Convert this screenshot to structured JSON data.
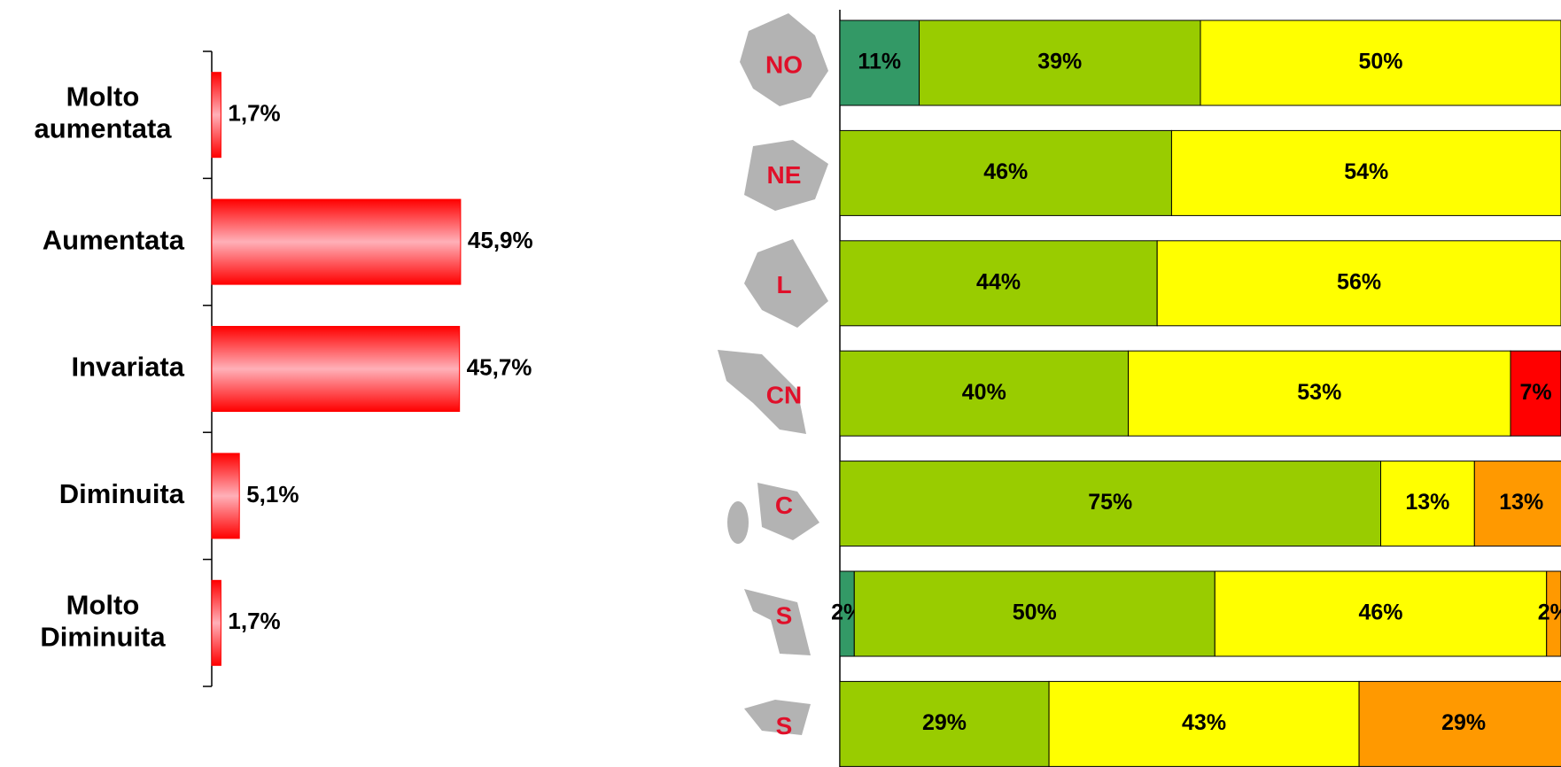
{
  "chart_data": [
    {
      "type": "barh",
      "categories": [
        "Molto aumentata",
        "Aumentata",
        "Invariata",
        "Diminuita",
        "Molto Diminuita"
      ],
      "values": [
        1.7,
        45.9,
        45.7,
        5.1,
        1.7
      ],
      "value_labels": [
        "1,7%",
        "45,9%",
        "45,7%",
        "5,1%",
        "1,7%"
      ],
      "color": "#ff0000",
      "xlim": [
        0,
        50
      ]
    },
    {
      "type": "stacked_barh",
      "categories": [
        "NO",
        "NE",
        "L",
        "CN",
        "C",
        "S",
        "S"
      ],
      "xlim": [
        0,
        100
      ],
      "series": [
        {
          "color": "#339966",
          "values": [
            11,
            null,
            null,
            null,
            null,
            2,
            null
          ],
          "value_labels": [
            "11%",
            null,
            null,
            null,
            null,
            "2%",
            null
          ]
        },
        {
          "color": "#99cc00",
          "values": [
            39,
            46,
            44,
            40,
            75,
            50,
            29
          ],
          "value_labels": [
            "39%",
            "46%",
            "44%",
            "40%",
            "75%",
            "50%",
            "29%"
          ]
        },
        {
          "color": "#ffff00",
          "values": [
            50,
            54,
            56,
            53,
            13,
            46,
            43
          ],
          "value_labels": [
            "50%",
            "54%",
            "56%",
            "53%",
            "13%",
            "46%",
            "43%"
          ]
        },
        {
          "color": "#ff0000",
          "values": [
            null,
            null,
            null,
            7,
            null,
            null,
            null
          ],
          "value_labels": [
            null,
            null,
            null,
            "7%",
            null,
            null,
            null
          ]
        },
        {
          "color": "#ff9900",
          "values": [
            null,
            null,
            null,
            null,
            13,
            2,
            29
          ],
          "value_labels": [
            null,
            null,
            null,
            null,
            "13%",
            "2%",
            "29%"
          ]
        }
      ]
    }
  ]
}
